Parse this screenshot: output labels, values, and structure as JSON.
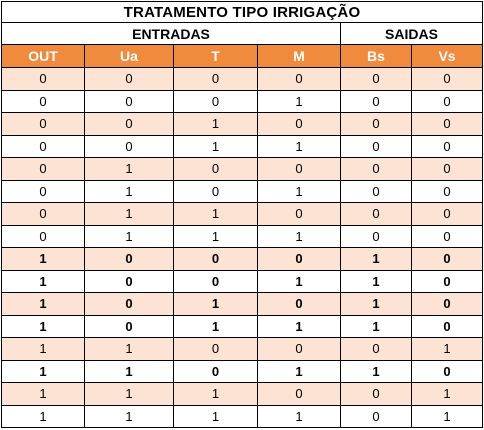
{
  "title": "TRATAMENTO TIPO IRRIGAÇÃO",
  "groups": {
    "entradas": "ENTRADAS",
    "saidas": "SAIDAS"
  },
  "columns": [
    "OUT",
    "Ua",
    "T",
    "M",
    "Bs",
    "Vs"
  ],
  "colors": {
    "header_bg": "#f08a3c",
    "header_text": "#ffffff",
    "stripe_bg": "#fde3d3",
    "border": "#000000"
  },
  "rows": [
    {
      "bold": false,
      "cells": [
        "0",
        "0",
        "0",
        "0",
        "0",
        "0"
      ]
    },
    {
      "bold": false,
      "cells": [
        "0",
        "0",
        "0",
        "1",
        "0",
        "0"
      ]
    },
    {
      "bold": false,
      "cells": [
        "0",
        "0",
        "1",
        "0",
        "0",
        "0"
      ]
    },
    {
      "bold": false,
      "cells": [
        "0",
        "0",
        "1",
        "1",
        "0",
        "0"
      ]
    },
    {
      "bold": false,
      "cells": [
        "0",
        "1",
        "0",
        "0",
        "0",
        "0"
      ]
    },
    {
      "bold": false,
      "cells": [
        "0",
        "1",
        "0",
        "1",
        "0",
        "0"
      ]
    },
    {
      "bold": false,
      "cells": [
        "0",
        "1",
        "1",
        "0",
        "0",
        "0"
      ]
    },
    {
      "bold": false,
      "cells": [
        "0",
        "1",
        "1",
        "1",
        "0",
        "0"
      ]
    },
    {
      "bold": true,
      "cells": [
        "1",
        "0",
        "0",
        "0",
        "1",
        "0"
      ]
    },
    {
      "bold": true,
      "cells": [
        "1",
        "0",
        "0",
        "1",
        "1",
        "0"
      ]
    },
    {
      "bold": true,
      "cells": [
        "1",
        "0",
        "1",
        "0",
        "1",
        "0"
      ]
    },
    {
      "bold": true,
      "cells": [
        "1",
        "0",
        "1",
        "1",
        "1",
        "0"
      ]
    },
    {
      "bold": false,
      "cells": [
        "1",
        "1",
        "0",
        "0",
        "0",
        "1"
      ]
    },
    {
      "bold": true,
      "cells": [
        "1",
        "1",
        "0",
        "1",
        "1",
        "0"
      ]
    },
    {
      "bold": false,
      "cells": [
        "1",
        "1",
        "1",
        "0",
        "0",
        "1"
      ]
    },
    {
      "bold": false,
      "cells": [
        "1",
        "1",
        "1",
        "1",
        "0",
        "1"
      ]
    }
  ]
}
